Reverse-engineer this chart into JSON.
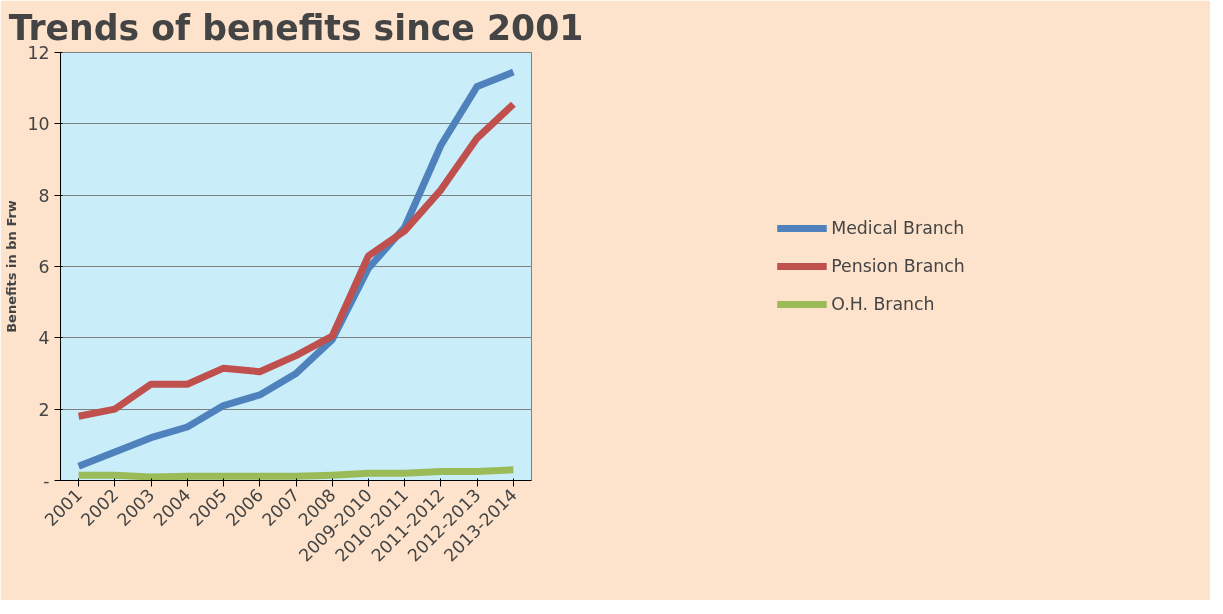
{
  "chart_data": {
    "type": "line",
    "title": "Trends of benefits since 2001",
    "ylabel": "Benefits in bn Frw",
    "categories": [
      "2001",
      "2002",
      "2003",
      "2004",
      "2005",
      "2006",
      "2007",
      "2008",
      "2009-2010",
      "2010-2011",
      "2011-2012",
      "2012-2013",
      "2013-2014"
    ],
    "series": [
      {
        "name": "Medical Branch",
        "color": "#4f81bd",
        "values": [
          0.4,
          0.8,
          1.2,
          1.5,
          2.1,
          2.4,
          3.0,
          3.95,
          5.95,
          7.1,
          9.4,
          11.05,
          11.45
        ]
      },
      {
        "name": "Pension Branch",
        "color": "#c0504d",
        "values": [
          1.8,
          2.0,
          2.7,
          2.7,
          3.15,
          3.05,
          3.5,
          4.05,
          6.3,
          7.0,
          8.15,
          9.6,
          10.55
        ]
      },
      {
        "name": "O.H. Branch",
        "color": "#9bbb59",
        "values": [
          0.15,
          0.15,
          0.1,
          0.12,
          0.12,
          0.12,
          0.12,
          0.15,
          0.2,
          0.2,
          0.25,
          0.25,
          0.3
        ]
      }
    ],
    "ylim": [
      0,
      12
    ],
    "yticks": [
      {
        "value": 0,
        "label": "-"
      },
      2,
      4,
      6,
      8,
      10,
      12
    ],
    "grid": "y",
    "legend": "right",
    "marker": "none",
    "line_style": "solid"
  }
}
